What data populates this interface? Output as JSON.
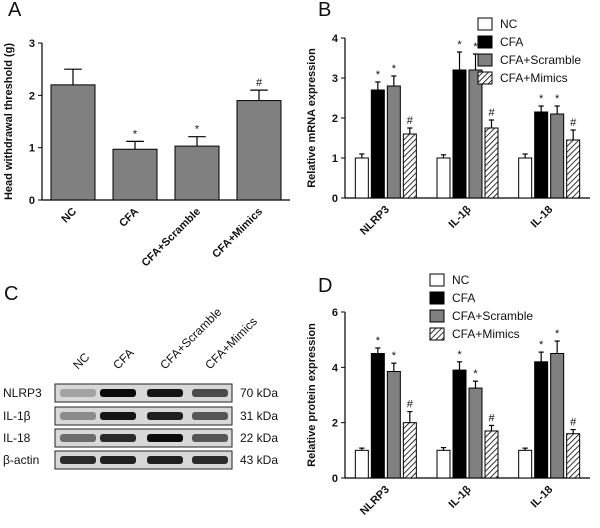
{
  "chart_data": [
    {
      "type": "bar",
      "label": "A",
      "ylabel": "Head withdrawal threshold (g)",
      "categories": [
        "NC",
        "CFA",
        "CFA+Scramble",
        "CFA+Mimics"
      ],
      "values": [
        2.2,
        0.97,
        1.03,
        1.9
      ],
      "errors": [
        0.3,
        0.15,
        0.18,
        0.2
      ],
      "markers": [
        null,
        "*",
        "*",
        "#"
      ],
      "color": "#808080",
      "ylim": [
        0,
        3
      ],
      "yticks": [
        0,
        1,
        2,
        3
      ]
    },
    {
      "type": "grouped_bar",
      "label": "B",
      "ylabel": "Relative mRNA expression",
      "categories": [
        "NLRP3",
        "IL-1β",
        "IL-18"
      ],
      "series": [
        {
          "name": "NC",
          "color": "#ffffff",
          "values": [
            1.0,
            1.0,
            1.0
          ],
          "errors": [
            0.1,
            0.08,
            0.1
          ],
          "markers": [
            null,
            null,
            null
          ]
        },
        {
          "name": "CFA",
          "color": "#000000",
          "values": [
            2.7,
            3.2,
            2.15
          ],
          "errors": [
            0.2,
            0.45,
            0.15
          ],
          "markers": [
            "*",
            "*",
            "*"
          ]
        },
        {
          "name": "CFA+Scramble",
          "color": "#808080",
          "values": [
            2.8,
            3.2,
            2.1
          ],
          "errors": [
            0.25,
            0.4,
            0.2
          ],
          "markers": [
            "*",
            "*",
            "*"
          ]
        },
        {
          "name": "CFA+Mimics",
          "color": "#ffffff",
          "hatch": true,
          "values": [
            1.6,
            1.75,
            1.45
          ],
          "errors": [
            0.15,
            0.2,
            0.25
          ],
          "markers": [
            "#",
            "#",
            "#"
          ]
        }
      ],
      "ylim": [
        0,
        4
      ],
      "yticks": [
        0,
        1,
        2,
        3,
        4
      ]
    },
    {
      "type": "grouped_bar",
      "label": "D",
      "ylabel": "Relative protein expression",
      "categories": [
        "NLRP3",
        "IL-1β",
        "IL-18"
      ],
      "series": [
        {
          "name": "NC",
          "color": "#ffffff",
          "values": [
            1.0,
            1.0,
            1.0
          ],
          "errors": [
            0.08,
            0.1,
            0.08
          ],
          "markers": [
            null,
            null,
            null
          ]
        },
        {
          "name": "CFA",
          "color": "#000000",
          "values": [
            4.5,
            3.9,
            4.2
          ],
          "errors": [
            0.2,
            0.3,
            0.35
          ],
          "markers": [
            "*",
            "*",
            "*"
          ]
        },
        {
          "name": "CFA+Scramble",
          "color": "#808080",
          "values": [
            3.85,
            3.25,
            4.5
          ],
          "errors": [
            0.3,
            0.25,
            0.45
          ],
          "markers": [
            "*",
            "*",
            "*"
          ]
        },
        {
          "name": "CFA+Mimics",
          "color": "#ffffff",
          "hatch": true,
          "values": [
            2.0,
            1.7,
            1.6
          ],
          "errors": [
            0.4,
            0.2,
            0.15
          ],
          "markers": [
            "#",
            "#",
            "#"
          ]
        }
      ],
      "ylim": [
        0,
        6
      ],
      "yticks": [
        0,
        2,
        4,
        6
      ]
    }
  ],
  "blot": {
    "label": "C",
    "lanes": [
      "NC",
      "CFA",
      "CFA+Scramble",
      "CFA+Mimics"
    ],
    "rows": [
      {
        "name": "NLRP3",
        "size": "70 kDa"
      },
      {
        "name": "IL-1β",
        "size": "31 kDa"
      },
      {
        "name": "IL-18",
        "size": "22 kDa"
      },
      {
        "name": "β-actin",
        "size": "43 kDa"
      }
    ]
  }
}
